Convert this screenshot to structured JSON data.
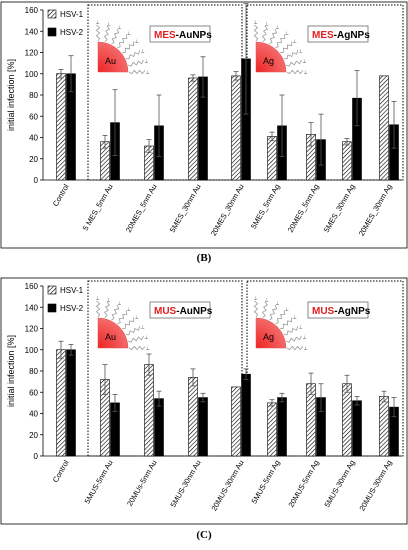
{
  "captions": {
    "b": "(B)",
    "c": "(C)"
  },
  "colors": {
    "hsv1_hatch": "#000000",
    "hsv2_fill": "#000000",
    "accent_red": "#ee2222",
    "frame": "#000000"
  },
  "chart_data": [
    {
      "type": "bar",
      "panel": "B",
      "ylabel": "initial infection [%]",
      "ylim": [
        0,
        160
      ],
      "yticks": [
        0,
        20,
        40,
        60,
        80,
        100,
        120,
        140,
        160
      ],
      "categories": [
        "Control",
        "5 MES_5nm Au",
        "20MES_5nm Au",
        "5MES_30nm Au",
        "20MES_30nm Au",
        "5MES_5nm Ag",
        "20MES_5nm Ag",
        "5MES_30nm Ag",
        "20MES_30nm Ag"
      ],
      "series": [
        {
          "name": "HSV-1",
          "values": [
            100,
            36,
            32,
            96,
            98,
            41,
            43,
            36,
            98
          ],
          "errors": [
            4,
            6,
            6,
            3,
            4,
            4,
            11,
            3,
            0
          ]
        },
        {
          "name": "HSV-2",
          "values": [
            100,
            54,
            51,
            97,
            114,
            51,
            38,
            77,
            52
          ],
          "errors": [
            17,
            31,
            29,
            19,
            52,
            29,
            24,
            26,
            22
          ]
        }
      ],
      "legend": "top-left",
      "insets": [
        {
          "prefix": "MES",
          "suffix": "-AuNPs",
          "particle": "Au"
        },
        {
          "prefix": "MES",
          "suffix": "-AgNPs",
          "particle": "Ag"
        }
      ]
    },
    {
      "type": "bar",
      "panel": "C",
      "ylabel": "initial infection [%]",
      "ylim": [
        0,
        160
      ],
      "yticks": [
        0,
        20,
        40,
        60,
        80,
        100,
        120,
        140,
        160
      ],
      "categories": [
        "Control",
        "5MUS-5nm Au",
        "20MUs-5nm Au",
        "5MUS-30nm Au",
        "20MUS-30nm Au",
        "5MUS-5nm Ag",
        "20MUS-5nm Ag",
        "5MUS-30nm Ag",
        "20MUS-30nm Ag"
      ],
      "series": [
        {
          "name": "HSV-1",
          "values": [
            100,
            72,
            86,
            74,
            65,
            50,
            68,
            68,
            56
          ],
          "errors": [
            8,
            14,
            10,
            8,
            0,
            3,
            10,
            8,
            5
          ]
        },
        {
          "name": "HSV-2",
          "values": [
            100,
            50,
            54,
            55,
            77,
            55,
            55,
            52,
            46
          ],
          "errors": [
            5,
            8,
            7,
            4,
            5,
            4,
            13,
            4,
            9
          ]
        }
      ],
      "legend": "top-left",
      "insets": [
        {
          "prefix": "MUS",
          "suffix": "-AuNPs",
          "particle": "Au"
        },
        {
          "prefix": "MUS",
          "suffix": "-AgNPs",
          "particle": "Ag"
        }
      ]
    }
  ]
}
